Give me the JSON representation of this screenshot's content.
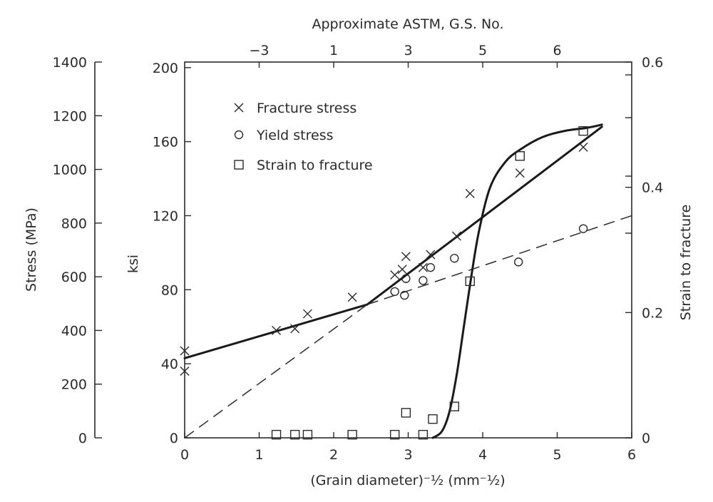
{
  "chart_data": {
    "type": "scatter",
    "xlabel": "(Grain diameter)⁻½ (mm⁻½)",
    "xlim": [
      0,
      6
    ],
    "x_ticks": [
      0,
      1,
      2,
      3,
      4,
      5,
      6
    ],
    "top_axis": {
      "label": "Approximate ASTM, G.S. No.",
      "ticks": [
        {
          "label": "−3",
          "x": 1.0
        },
        {
          "label": "1",
          "x": 2.0
        },
        {
          "label": "3",
          "x": 3.0
        },
        {
          "label": "5",
          "x": 4.0
        },
        {
          "label": "6",
          "x": 5.0
        }
      ]
    },
    "left_outer_axis": {
      "label": "Stress (MPa)",
      "lim": [
        0,
        1400
      ],
      "ticks": [
        0,
        200,
        400,
        600,
        800,
        1000,
        1200,
        1400
      ]
    },
    "left_inner_axis": {
      "label": "ksi",
      "lim": [
        0,
        203
      ],
      "ticks": [
        0,
        40,
        80,
        120,
        160,
        200
      ]
    },
    "right_axis": {
      "label": "Strain to fracture",
      "lim": [
        0,
        0.6
      ],
      "ticks": [
        0,
        0.2,
        0.4,
        0.6
      ]
    },
    "legend": {
      "placement": "top-left",
      "entries": [
        {
          "marker": "x",
          "label": "Fracture stress"
        },
        {
          "marker": "circle",
          "label": "Yield stress"
        },
        {
          "marker": "square",
          "label": "Strain to fracture"
        }
      ]
    },
    "series": [
      {
        "name": "Fracture stress",
        "marker": "x",
        "axis": "ksi",
        "points": [
          [
            0.0,
            47
          ],
          [
            0.0,
            36
          ],
          [
            1.23,
            58
          ],
          [
            1.48,
            59
          ],
          [
            1.65,
            67
          ],
          [
            2.25,
            76
          ],
          [
            2.82,
            88
          ],
          [
            2.92,
            91
          ],
          [
            2.97,
            98
          ],
          [
            3.2,
            92
          ],
          [
            3.3,
            99
          ],
          [
            3.65,
            109
          ],
          [
            3.83,
            132
          ],
          [
            4.5,
            143
          ],
          [
            5.35,
            157
          ]
        ],
        "fit_lines": [
          {
            "style": "solid",
            "points": [
              [
                0.0,
                43
              ],
              [
                2.45,
                72
              ]
            ]
          },
          {
            "style": "solid",
            "points": [
              [
                2.45,
                72
              ],
              [
                5.6,
                168
              ]
            ]
          },
          {
            "style": "dashed",
            "points": [
              [
                0.0,
                0
              ],
              [
                2.45,
                72
              ]
            ]
          }
        ]
      },
      {
        "name": "Yield stress",
        "marker": "circle",
        "axis": "ksi",
        "points": [
          [
            2.82,
            79
          ],
          [
            2.95,
            77
          ],
          [
            2.97,
            86
          ],
          [
            3.2,
            85
          ],
          [
            3.3,
            92
          ],
          [
            3.62,
            97
          ],
          [
            4.48,
            95
          ],
          [
            5.35,
            113
          ]
        ],
        "fit_lines": [
          {
            "style": "dashed",
            "points": [
              [
                2.45,
                72
              ],
              [
                6.0,
                120
              ]
            ]
          }
        ]
      },
      {
        "name": "Strain to fracture",
        "marker": "square",
        "axis": "strain",
        "points": [
          [
            1.23,
            0.005
          ],
          [
            1.48,
            0.005
          ],
          [
            1.65,
            0.005
          ],
          [
            2.25,
            0.005
          ],
          [
            2.82,
            0.005
          ],
          [
            2.97,
            0.04
          ],
          [
            3.2,
            0.005
          ],
          [
            3.33,
            0.03
          ],
          [
            3.62,
            0.05
          ],
          [
            3.83,
            0.25
          ],
          [
            4.5,
            0.45
          ],
          [
            5.35,
            0.49
          ]
        ],
        "fit_lines": [
          {
            "style": "solid-curve",
            "points": [
              [
                3.33,
                0.0
              ],
              [
                3.45,
                0.01
              ],
              [
                3.55,
                0.04
              ],
              [
                3.65,
                0.1
              ],
              [
                3.75,
                0.18
              ],
              [
                3.85,
                0.26
              ],
              [
                3.95,
                0.33
              ],
              [
                4.1,
                0.4
              ],
              [
                4.3,
                0.44
              ],
              [
                4.5,
                0.46
              ],
              [
                4.8,
                0.48
              ],
              [
                5.1,
                0.49
              ],
              [
                5.4,
                0.495
              ],
              [
                5.6,
                0.5
              ]
            ]
          }
        ]
      }
    ]
  }
}
